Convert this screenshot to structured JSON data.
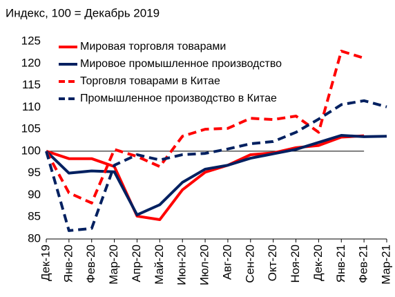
{
  "chart_data": {
    "type": "line",
    "title": "Индекс, 100 = Декабрь 2019",
    "categories": [
      "Дек-19",
      "Янв-20",
      "Фев-20",
      "Мар-20",
      "Апр-20",
      "Май-20",
      "Июн-20",
      "Июл-20",
      "Авг-20",
      "Сен-20",
      "Окт-20",
      "Ноя-20",
      "Дек-20",
      "Янв-21",
      "Фев-21",
      "Мар-21"
    ],
    "series": [
      {
        "name": "Мировая торговля товарами",
        "color": "#ff0000",
        "dash": false,
        "values": [
          100,
          98.3,
          98.3,
          96.5,
          85.2,
          84.4,
          91.2,
          95.2,
          96.8,
          99.2,
          99.6,
          100.8,
          101.3,
          103.2,
          103.5,
          null
        ]
      },
      {
        "name": "Мировое промышленное производство",
        "color": "#002060",
        "dash": false,
        "values": [
          100,
          95,
          95.5,
          95.3,
          85.5,
          87.8,
          92.9,
          95.9,
          96.8,
          98.4,
          99.4,
          100.4,
          102,
          103.6,
          103.3,
          103.4
        ]
      },
      {
        "name": "Торговля товарами в Китае",
        "color": "#ff0000",
        "dash": true,
        "values": [
          100,
          90.5,
          88.2,
          100.4,
          98.8,
          96.5,
          103.4,
          105,
          105.2,
          107.5,
          107.2,
          108,
          104.3,
          122.8,
          121.2,
          null
        ]
      },
      {
        "name": "Промышленное производство в Китае",
        "color": "#002060",
        "dash": true,
        "values": [
          100,
          81.9,
          82.4,
          96.8,
          99.2,
          98,
          99.2,
          99.5,
          100.5,
          101.7,
          102.2,
          104.3,
          107.3,
          110.6,
          111.5,
          110.1
        ]
      }
    ],
    "reference_line": 100,
    "ylim": [
      80,
      125
    ],
    "yticks": [
      80,
      85,
      90,
      95,
      100,
      105,
      110,
      115,
      120,
      125
    ],
    "grid": false
  }
}
